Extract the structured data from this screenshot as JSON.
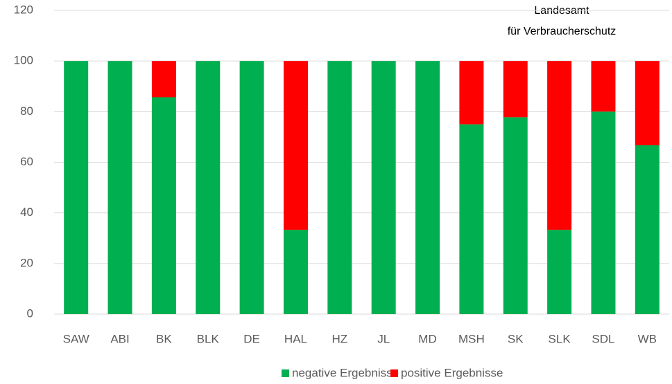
{
  "chart_data": {
    "type": "stacked_bar",
    "annotation": [
      "Landesamt",
      "für Verbraucherschutz"
    ],
    "categories": [
      "SAW",
      "ABI",
      "BK",
      "BLK",
      "DE",
      "HAL",
      "HZ",
      "JL",
      "MD",
      "MSH",
      "SK",
      "SLK",
      "SDL",
      "WB"
    ],
    "series": [
      {
        "name": "negative Ergebnisse",
        "color": "#00b050",
        "values": [
          100,
          100,
          85.7,
          100,
          100,
          33.3,
          100,
          100,
          100,
          75,
          77.8,
          33.3,
          80,
          66.7
        ]
      },
      {
        "name": "positive Ergebnisse",
        "color": "#ff0000",
        "values": [
          0,
          0,
          14.3,
          0,
          0,
          66.7,
          0,
          0,
          0,
          25,
          22.2,
          66.7,
          20,
          33.3
        ]
      }
    ],
    "ylim": [
      0,
      120
    ],
    "yticks": [
      0,
      20,
      40,
      60,
      80,
      100,
      120
    ],
    "grid": true,
    "legend": "bottom"
  }
}
